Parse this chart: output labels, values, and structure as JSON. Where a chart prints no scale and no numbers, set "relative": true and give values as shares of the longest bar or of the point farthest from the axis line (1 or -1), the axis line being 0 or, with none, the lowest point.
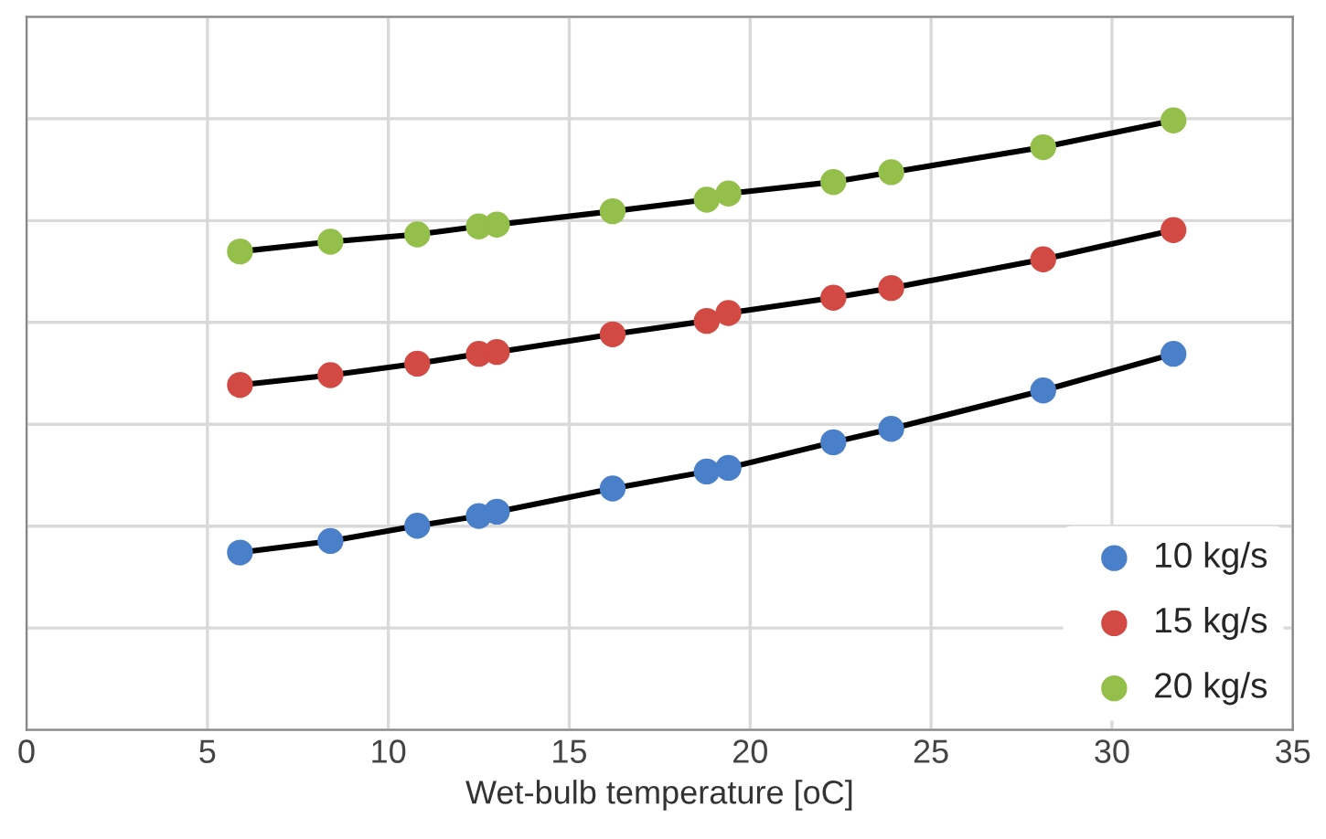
{
  "chart_data": {
    "type": "line",
    "xlabel": "Wet-bulb temperature [oC]",
    "relative": true,
    "x": [
      5.9,
      8.4,
      10.8,
      12.5,
      13.0,
      16.2,
      18.8,
      19.4,
      22.3,
      23.9,
      28.1,
      31.7
    ],
    "xlim": [
      0,
      35
    ],
    "xticks": [
      0,
      5,
      10,
      15,
      20,
      25,
      30,
      35
    ],
    "series": [
      {
        "name": "10 kg/s",
        "color": "#4a7fc9",
        "values": [
          0.291,
          0.31,
          0.335,
          0.351,
          0.358,
          0.396,
          0.424,
          0.43,
          0.472,
          0.494,
          0.557,
          0.617
        ]
      },
      {
        "name": "15 kg/s",
        "color": "#d24a43",
        "values": [
          0.566,
          0.582,
          0.601,
          0.617,
          0.62,
          0.649,
          0.671,
          0.684,
          0.709,
          0.725,
          0.772,
          0.82
        ]
      },
      {
        "name": "20 kg/s",
        "color": "#93bf4a",
        "values": [
          0.785,
          0.801,
          0.813,
          0.826,
          0.829,
          0.851,
          0.87,
          0.88,
          0.899,
          0.915,
          0.956,
          1.0
        ]
      }
    ],
    "marker": "circle",
    "line_style": "solid",
    "grid": true,
    "legend": "bottom right"
  }
}
